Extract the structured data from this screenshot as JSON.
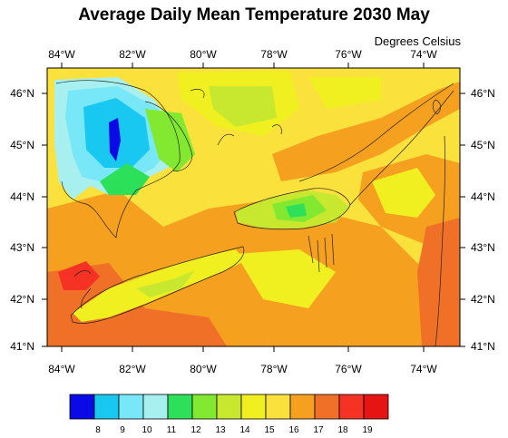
{
  "title": "Average Daily Mean Temperature 2030 May",
  "units_label": "Degrees Celsius",
  "axes": {
    "x_ticks": [
      "84°W",
      "82°W",
      "80°W",
      "78°W",
      "76°W",
      "74°W"
    ],
    "y_ticks": [
      "46°N",
      "45°N",
      "44°N",
      "43°N",
      "42°N",
      "41°N"
    ]
  },
  "colorbar": {
    "colors": [
      "#0a0ae6",
      "#18c8f0",
      "#78e8f8",
      "#a8f0f0",
      "#2de05a",
      "#82e830",
      "#c8e830",
      "#f0f020",
      "#fae13c",
      "#f5a01e",
      "#f07028",
      "#f53223",
      "#e61414"
    ],
    "labels": [
      "8",
      "9",
      "10",
      "11",
      "12",
      "13",
      "14",
      "15",
      "16",
      "17",
      "18",
      "19"
    ]
  },
  "map": {
    "region": "Great Lakes / Ontario / New York",
    "palette": {
      "base": "#fae13c",
      "warm": "#f5a01e",
      "hot": "#f07028",
      "very_hot": "#f53223",
      "mild": "#f0f020",
      "cool": "#c8e830",
      "cooler": "#82e830",
      "green": "#2de05a",
      "cold": "#78e8f8",
      "colder": "#18c8f0",
      "coldest": "#0a0ae6"
    }
  }
}
